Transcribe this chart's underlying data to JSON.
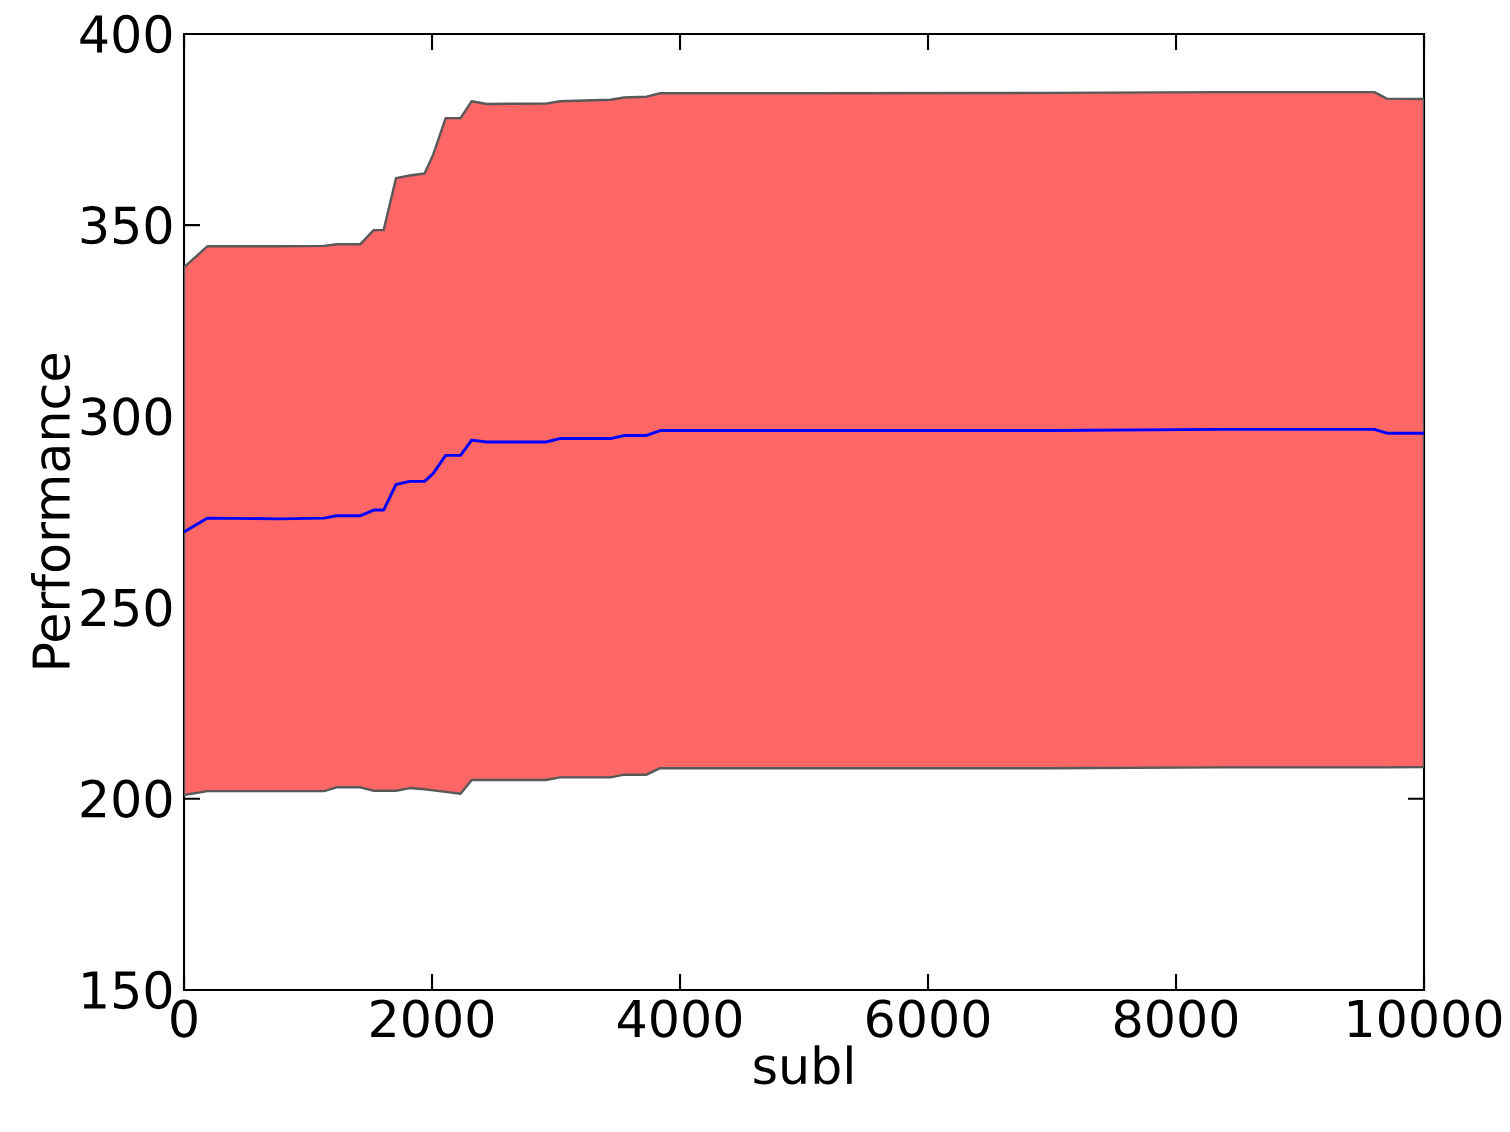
{
  "chart_data": {
    "type": "line",
    "xlabel": "subl",
    "ylabel": "Performance",
    "xlim": [
      0,
      10000
    ],
    "ylim": [
      150,
      400
    ],
    "xticks": [
      0,
      2000,
      4000,
      6000,
      8000,
      10000
    ],
    "yticks": [
      150,
      200,
      250,
      300,
      350,
      400
    ],
    "x": [
      0,
      190,
      770,
      1130,
      1230,
      1420,
      1530,
      1610,
      1710,
      1820,
      1940,
      2010,
      2110,
      2230,
      2320,
      2440,
      2920,
      3030,
      3440,
      3550,
      3730,
      3840,
      5000,
      7000,
      8350,
      9600,
      9700,
      10000
    ],
    "series": [
      {
        "color": "#0000ff",
        "values": [
          269.8,
          273.4,
          273.2,
          273.4,
          274,
          274,
          275.5,
          275.5,
          282.2,
          283,
          283,
          285.1,
          289.8,
          289.8,
          293.8,
          293.3,
          293.3,
          294.2,
          294.2,
          295,
          295,
          296.3,
          296.3,
          296.3,
          296.6,
          296.6,
          295.6,
          295.6
        ],
        "lower": [
          201,
          202,
          202,
          202,
          203,
          203,
          202.1,
          202.1,
          202.1,
          202.8,
          202.5,
          202.2,
          201.8,
          201.3,
          204.9,
          204.9,
          204.9,
          205.6,
          205.6,
          206.3,
          206.3,
          208,
          208,
          208,
          208.2,
          208.2,
          208.2,
          208.3
        ],
        "upper": [
          339,
          344.5,
          344.5,
          344.6,
          345,
          345,
          348.7,
          348.7,
          362.3,
          363,
          363.5,
          368.5,
          378,
          378,
          382.4,
          381.7,
          381.8,
          382.4,
          382.8,
          383.4,
          383.6,
          384.5,
          384.5,
          384.6,
          384.8,
          384.8,
          383.1,
          383
        ]
      }
    ]
  }
}
